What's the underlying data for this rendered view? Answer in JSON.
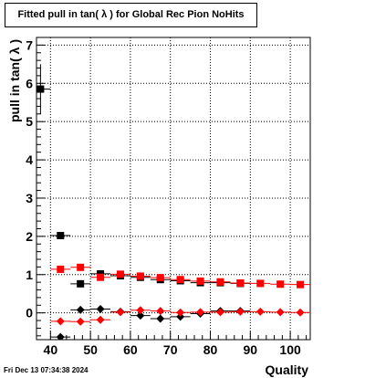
{
  "chart_data": {
    "type": "scatter",
    "title": "Fitted pull in tan( λ  ) for Global Rec Pion NoHits",
    "xlabel": "Quality",
    "ylabel": "pull in tan( λ )",
    "xlim": [
      36.5,
      105
    ],
    "ylim": [
      -0.7,
      7.2
    ],
    "x_ticks": [
      "40",
      "50",
      "60",
      "70",
      "80",
      "90",
      "100"
    ],
    "y_ticks": [
      "0",
      "1",
      "2",
      "3",
      "4",
      "5",
      "6",
      "7"
    ],
    "grid": true,
    "series": [
      {
        "color": "#000000",
        "marker": "square",
        "points": [
          {
            "x": 37.5,
            "y": 5.85,
            "xerr": 2.5,
            "yerr": 0.65
          },
          {
            "x": 42.5,
            "y": 2.02,
            "xerr": 2.5,
            "yerr": 0.05
          },
          {
            "x": 47.5,
            "y": 0.76,
            "xerr": 2.5,
            "yerr": 0.05
          },
          {
            "x": 52.5,
            "y": 1.02,
            "xerr": 2.5,
            "yerr": 0.04
          },
          {
            "x": 57.5,
            "y": 0.97,
            "xerr": 2.5,
            "yerr": 0.04
          },
          {
            "x": 62.5,
            "y": 0.93,
            "xerr": 2.5,
            "yerr": 0.03
          },
          {
            "x": 67.5,
            "y": 0.87,
            "xerr": 2.5,
            "yerr": 0.03
          },
          {
            "x": 72.5,
            "y": 0.84,
            "xerr": 2.5,
            "yerr": 0.03
          },
          {
            "x": 77.5,
            "y": 0.79,
            "xerr": 2.5,
            "yerr": 0.03
          },
          {
            "x": 82.5,
            "y": 0.79,
            "xerr": 2.5,
            "yerr": 0.03
          },
          {
            "x": 87.5,
            "y": 0.77,
            "xerr": 2.5,
            "yerr": 0.03
          }
        ]
      },
      {
        "color": "#ff0000",
        "marker": "square",
        "points": [
          {
            "x": 42.5,
            "y": 1.14,
            "xerr": 2.5,
            "yerr": 0.05
          },
          {
            "x": 47.5,
            "y": 1.19,
            "xerr": 2.5,
            "yerr": 0.05
          },
          {
            "x": 52.5,
            "y": 0.93,
            "xerr": 2.5,
            "yerr": 0.04
          },
          {
            "x": 57.5,
            "y": 1.01,
            "xerr": 2.5,
            "yerr": 0.04
          },
          {
            "x": 62.5,
            "y": 0.96,
            "xerr": 2.5,
            "yerr": 0.03
          },
          {
            "x": 67.5,
            "y": 0.92,
            "xerr": 2.5,
            "yerr": 0.03
          },
          {
            "x": 72.5,
            "y": 0.87,
            "xerr": 2.5,
            "yerr": 0.03
          },
          {
            "x": 77.5,
            "y": 0.83,
            "xerr": 2.5,
            "yerr": 0.03
          },
          {
            "x": 82.5,
            "y": 0.81,
            "xerr": 2.5,
            "yerr": 0.03
          },
          {
            "x": 87.5,
            "y": 0.78,
            "xerr": 2.5,
            "yerr": 0.03
          },
          {
            "x": 92.5,
            "y": 0.77,
            "xerr": 2.5,
            "yerr": 0.03
          },
          {
            "x": 97.5,
            "y": 0.75,
            "xerr": 2.5,
            "yerr": 0.03
          },
          {
            "x": 102.5,
            "y": 0.74,
            "xerr": 2.5,
            "yerr": 0.03
          }
        ]
      },
      {
        "color": "#000000",
        "marker": "diamond",
        "points": [
          {
            "x": 42.5,
            "y": -0.63,
            "xerr": 2.5,
            "yerr": 0.04
          },
          {
            "x": 47.5,
            "y": 0.08,
            "xerr": 2.5,
            "yerr": 0.04
          },
          {
            "x": 52.5,
            "y": 0.1,
            "xerr": 2.5,
            "yerr": 0.04
          },
          {
            "x": 57.5,
            "y": 0.03,
            "xerr": 2.5,
            "yerr": 0.03
          },
          {
            "x": 62.5,
            "y": -0.07,
            "xerr": 2.5,
            "yerr": 0.03
          },
          {
            "x": 67.5,
            "y": -0.15,
            "xerr": 2.5,
            "yerr": 0.03
          },
          {
            "x": 72.5,
            "y": -0.1,
            "xerr": 2.5,
            "yerr": 0.03
          },
          {
            "x": 77.5,
            "y": -0.02,
            "xerr": 2.5,
            "yerr": 0.03
          },
          {
            "x": 82.5,
            "y": 0.05,
            "xerr": 2.5,
            "yerr": 0.03
          },
          {
            "x": 87.5,
            "y": 0.05,
            "xerr": 2.5,
            "yerr": 0.03
          }
        ]
      },
      {
        "color": "#ff0000",
        "marker": "diamond",
        "points": [
          {
            "x": 42.5,
            "y": -0.22,
            "xerr": 2.5,
            "yerr": 0.04
          },
          {
            "x": 47.5,
            "y": -0.23,
            "xerr": 2.5,
            "yerr": 0.04
          },
          {
            "x": 52.5,
            "y": -0.18,
            "xerr": 2.5,
            "yerr": 0.04
          },
          {
            "x": 57.5,
            "y": 0.02,
            "xerr": 2.5,
            "yerr": 0.03
          },
          {
            "x": 62.5,
            "y": 0.07,
            "xerr": 2.5,
            "yerr": 0.03
          },
          {
            "x": 67.5,
            "y": 0.05,
            "xerr": 2.5,
            "yerr": 0.03
          },
          {
            "x": 72.5,
            "y": 0.01,
            "xerr": 2.5,
            "yerr": 0.03
          },
          {
            "x": 77.5,
            "y": 0.02,
            "xerr": 2.5,
            "yerr": 0.03
          },
          {
            "x": 82.5,
            "y": 0.02,
            "xerr": 2.5,
            "yerr": 0.03
          },
          {
            "x": 87.5,
            "y": 0.03,
            "xerr": 2.5,
            "yerr": 0.03
          },
          {
            "x": 92.5,
            "y": 0.03,
            "xerr": 2.5,
            "yerr": 0.03
          },
          {
            "x": 97.5,
            "y": 0.02,
            "xerr": 2.5,
            "yerr": 0.03
          },
          {
            "x": 102.5,
            "y": 0.01,
            "xerr": 2.5,
            "yerr": 0.03
          }
        ]
      }
    ]
  },
  "footer": {
    "timestamp": "Fri Dec 13 07:34:38 2024"
  }
}
